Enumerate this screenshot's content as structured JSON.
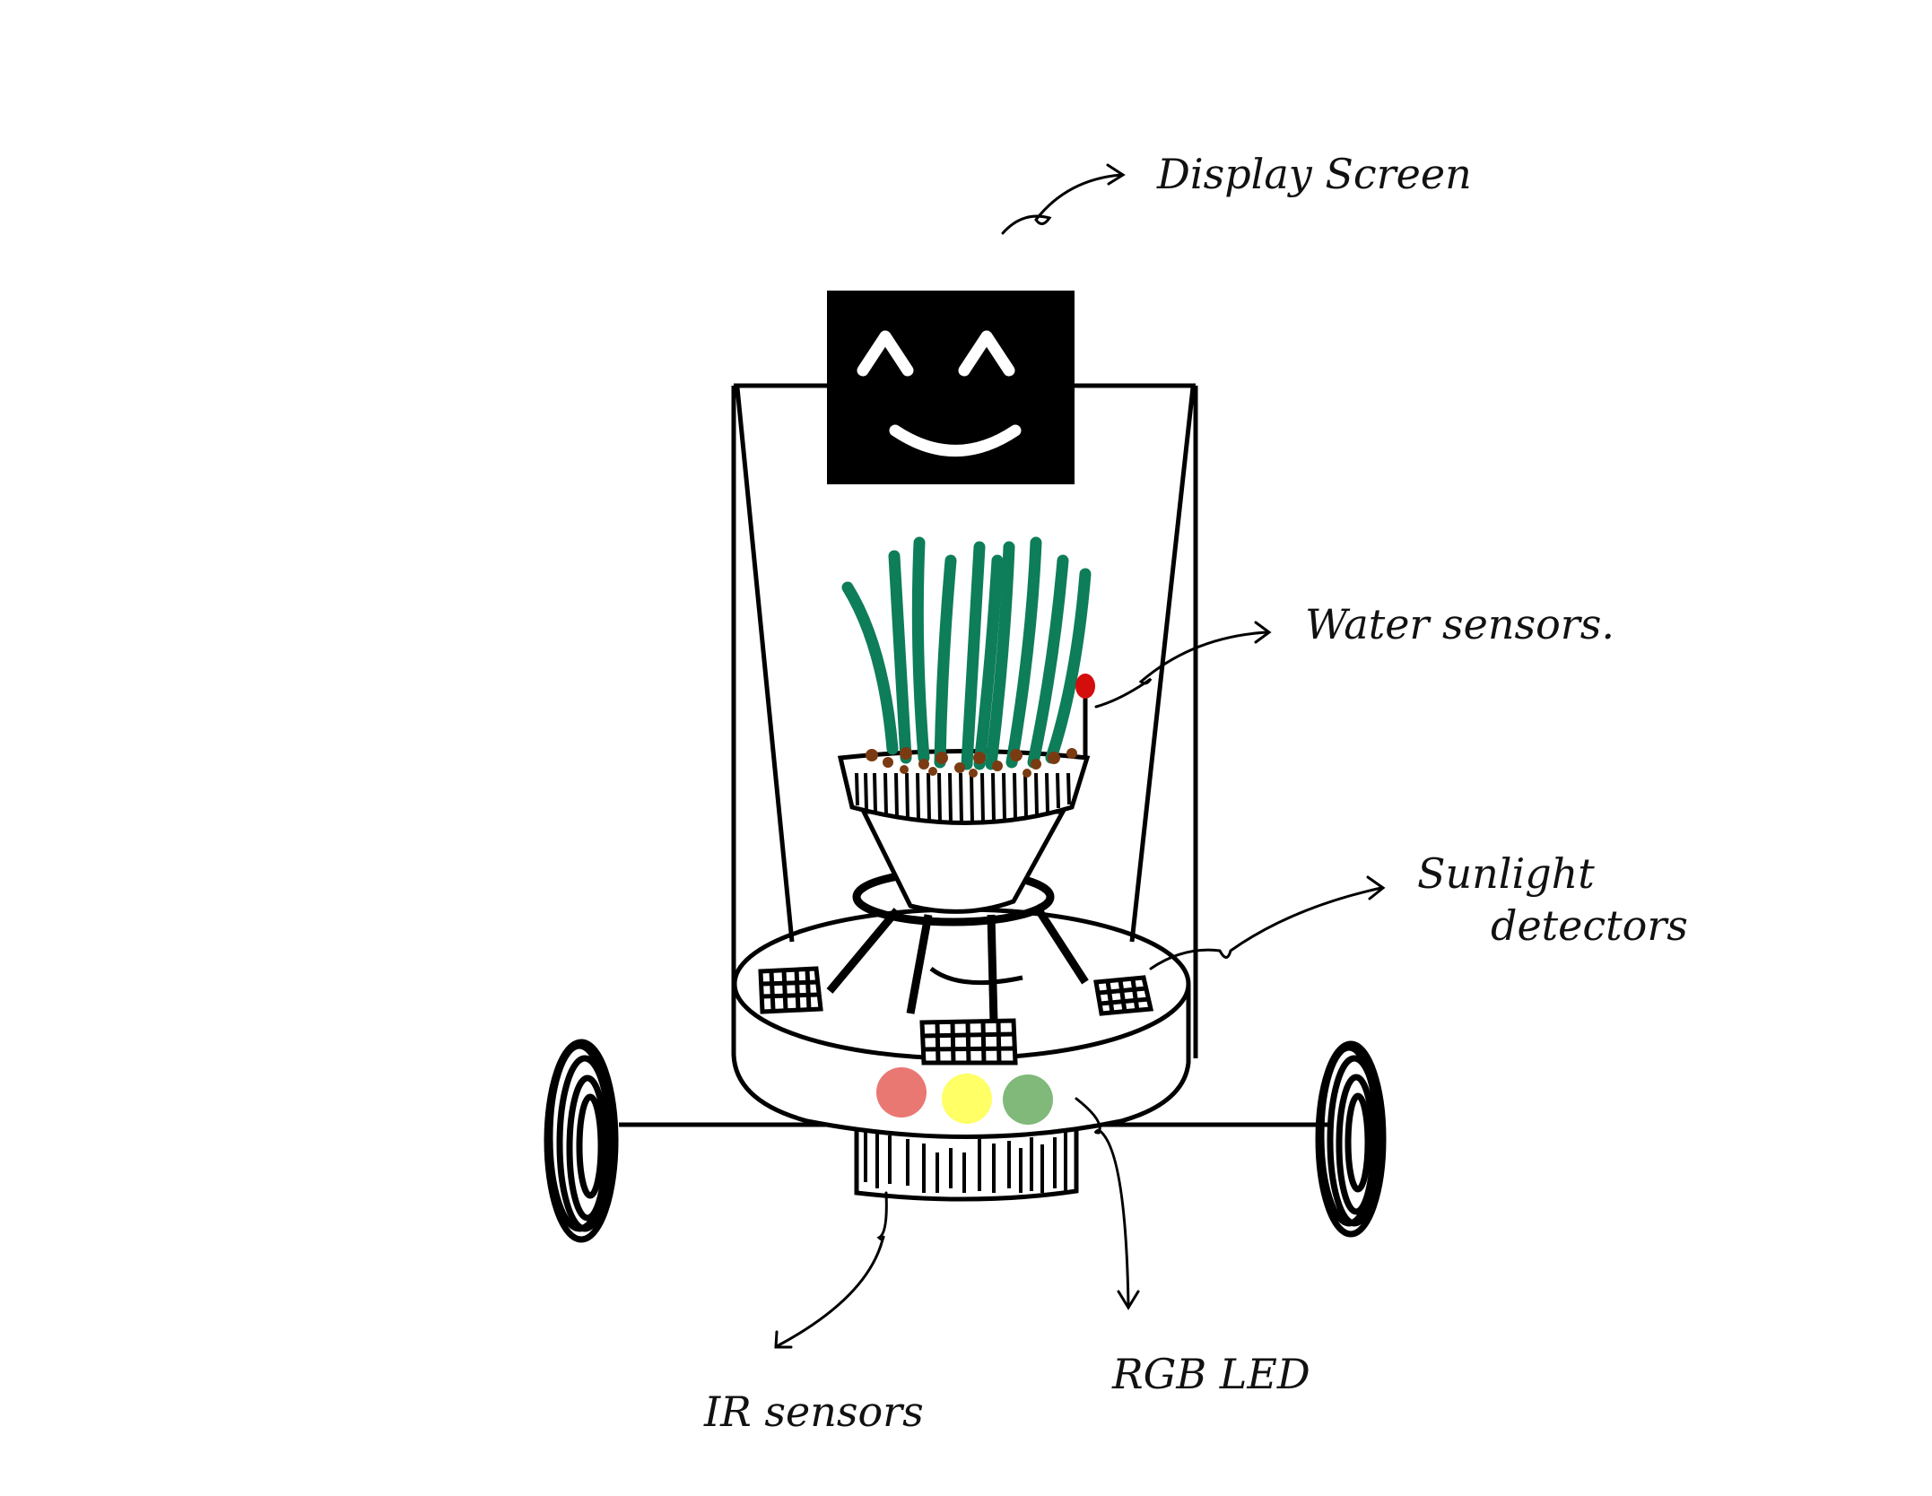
{
  "diagram": {
    "labels": {
      "display_screen": "Display Screen",
      "water_sensors": "Water sensors.",
      "sunlight_line1": "Sunlight",
      "sunlight_line2": "detectors",
      "ir_sensors": "IR sensors",
      "rgb_led": "RGB LED"
    },
    "led_colors": {
      "red": "#e97873",
      "yellow": "#ffff66",
      "green": "#80b979"
    },
    "colors": {
      "stroke": "#000000",
      "screen": "#000000",
      "face": "#ffffff",
      "leaf": "#0e7d59",
      "soil": "#7a3b12",
      "water_probe": "#d40d0d"
    }
  }
}
